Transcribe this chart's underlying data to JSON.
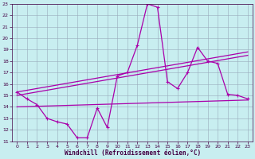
{
  "xlabel": "Windchill (Refroidissement éolien,°C)",
  "xlim": [
    -0.5,
    23.5
  ],
  "ylim": [
    11,
    23
  ],
  "yticks": [
    11,
    12,
    13,
    14,
    15,
    16,
    17,
    18,
    19,
    20,
    21,
    22,
    23
  ],
  "xticks": [
    0,
    1,
    2,
    3,
    4,
    5,
    6,
    7,
    8,
    9,
    10,
    11,
    12,
    13,
    14,
    15,
    16,
    17,
    18,
    19,
    20,
    21,
    22,
    23
  ],
  "bg_color": "#c8eef0",
  "line_color": "#aa00aa",
  "grid_color": "#99aabb",
  "curve1_x": [
    0,
    1,
    2,
    3,
    4,
    5,
    6,
    7,
    8,
    9,
    10,
    11,
    12,
    13,
    14,
    15,
    16,
    17,
    18,
    19,
    20,
    21,
    22,
    23
  ],
  "curve1_y": [
    15.3,
    14.7,
    14.2,
    13.0,
    12.7,
    12.5,
    11.3,
    11.3,
    13.9,
    12.2,
    16.7,
    17.0,
    19.4,
    23.0,
    22.7,
    16.2,
    15.6,
    17.0,
    19.2,
    18.0,
    17.8,
    15.1,
    15.0,
    14.7
  ],
  "curve2_x": [
    0,
    23
  ],
  "curve2_y": [
    15.0,
    18.5
  ],
  "curve3_x": [
    0,
    23
  ],
  "curve3_y": [
    15.3,
    18.8
  ],
  "curve4_x": [
    0,
    23
  ],
  "curve4_y": [
    14.0,
    14.6
  ]
}
